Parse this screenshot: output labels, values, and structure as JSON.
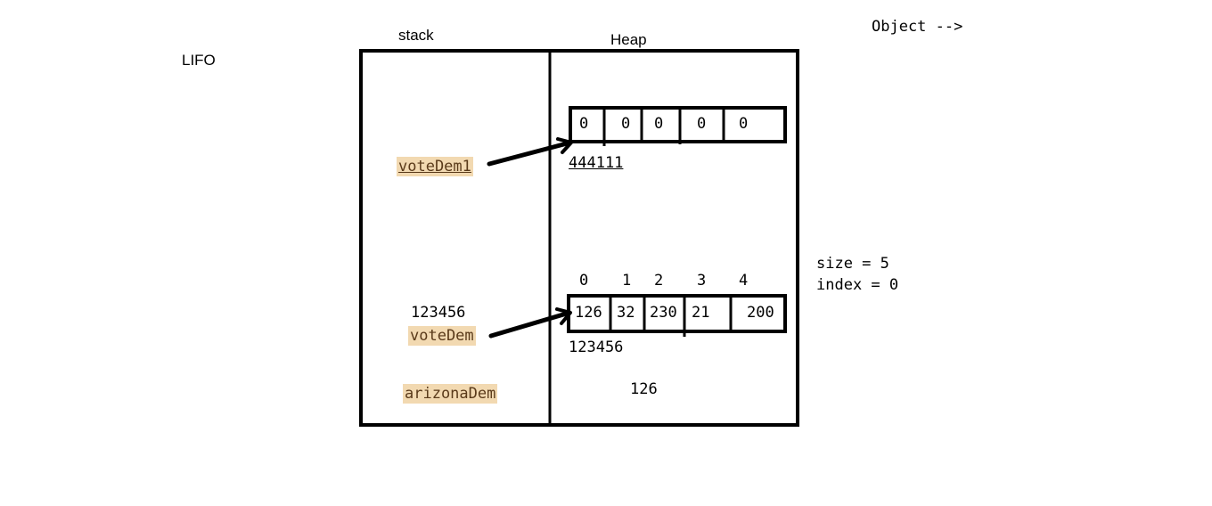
{
  "labels": {
    "lifo": "LIFO",
    "stack": "stack",
    "heap": "Heap",
    "object": "Object -->",
    "size": "size = 5",
    "index": "index = 0"
  },
  "stack_vars": {
    "vote_dem1": "voteDem1",
    "vote_dem_address": "123456",
    "vote_dem": "voteDem",
    "arizona_dem": "arizonaDem"
  },
  "heap": {
    "array1": {
      "cells": [
        "0",
        "0",
        "0",
        "0",
        "0"
      ],
      "address": "444111"
    },
    "array2": {
      "indices": [
        "0",
        "1",
        "2",
        "3",
        "4"
      ],
      "cells": [
        "126",
        "32",
        "230",
        "21",
        "200"
      ],
      "address": "123456"
    },
    "loose_value": "126"
  },
  "colors": {
    "stroke": "#000000",
    "highlight": "#f2d9b1",
    "highlight_text": "#5a3a1a"
  }
}
